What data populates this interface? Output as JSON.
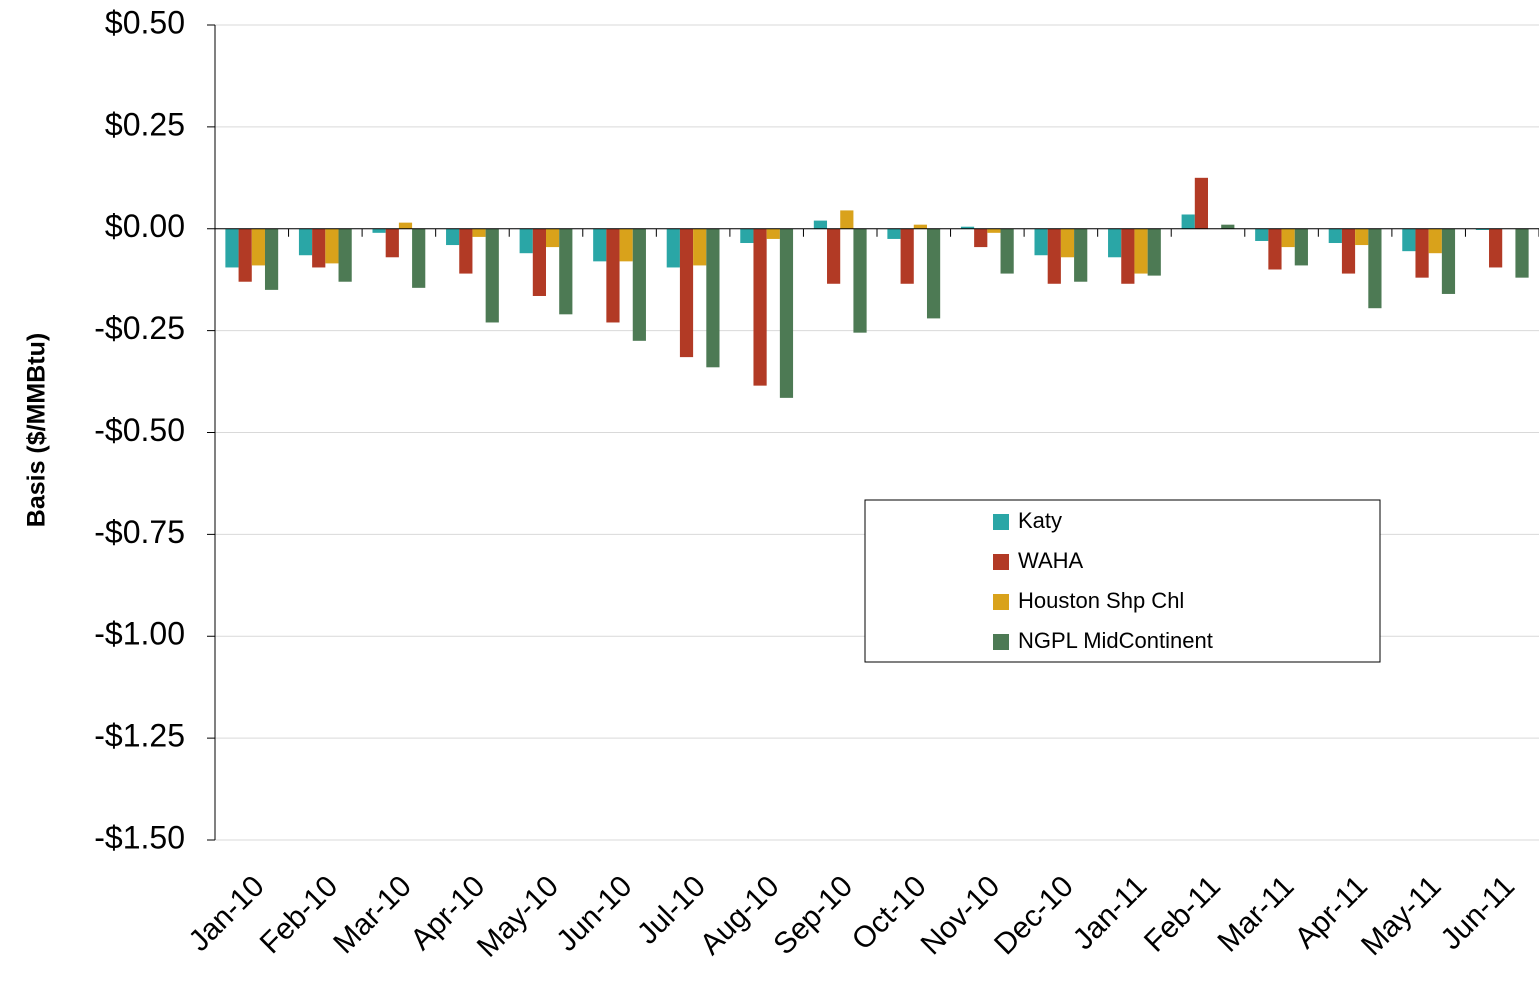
{
  "chart_data": {
    "type": "bar",
    "y_label": "Basis ($/MMBtu)",
    "categories": [
      "Jan-10",
      "Feb-10",
      "Mar-10",
      "Apr-10",
      "May-10",
      "Jun-10",
      "Jul-10",
      "Aug-10",
      "Sep-10",
      "Oct-10",
      "Nov-10",
      "Dec-10",
      "Jan-11",
      "Feb-11",
      "Mar-11",
      "Apr-11",
      "May-11",
      "Jun-11"
    ],
    "series": [
      {
        "name": "Katy",
        "color": "#2aa6a6",
        "values": [
          -0.095,
          -0.065,
          -0.01,
          -0.04,
          -0.06,
          -0.08,
          -0.095,
          -0.035,
          0.02,
          -0.025,
          0.005,
          -0.065,
          -0.07,
          0.035,
          -0.03,
          -0.035,
          -0.055,
          -0.003
        ]
      },
      {
        "name": "WAHA",
        "color": "#b23a25",
        "values": [
          -0.13,
          -0.095,
          -0.07,
          -0.11,
          -0.165,
          -0.23,
          -0.315,
          -0.385,
          -0.135,
          -0.135,
          -0.045,
          -0.135,
          -0.135,
          0.125,
          -0.1,
          -0.11,
          -0.12,
          -0.095
        ]
      },
      {
        "name": "Houston Shp Chl",
        "color": "#d9a21b",
        "values": [
          -0.09,
          -0.085,
          0.015,
          -0.02,
          -0.045,
          -0.08,
          -0.09,
          -0.025,
          0.045,
          0.01,
          -0.01,
          -0.07,
          -0.11,
          null,
          -0.045,
          -0.04,
          -0.06,
          null
        ]
      },
      {
        "name": "NGPL MidContinent",
        "color": "#4d7a54",
        "values": [
          -0.15,
          -0.13,
          -0.145,
          -0.23,
          -0.21,
          -0.275,
          -0.34,
          -0.415,
          -0.255,
          -0.22,
          -0.11,
          -0.13,
          -0.115,
          0.01,
          -0.09,
          -0.195,
          -0.16,
          -0.12
        ]
      }
    ],
    "ylim": [
      -1.5,
      0.5
    ],
    "yticks": [
      {
        "value": 0.5,
        "label": "$0.50"
      },
      {
        "value": 0.25,
        "label": "$0.25"
      },
      {
        "value": 0,
        "label": "$0.00"
      },
      {
        "value": -0.25,
        "label": "-$0.25"
      },
      {
        "value": -0.5,
        "label": "-$0.50"
      },
      {
        "value": -0.75,
        "label": "-$0.75"
      },
      {
        "value": -1,
        "label": "-$1.00"
      },
      {
        "value": -1.25,
        "label": "-$1.25"
      },
      {
        "value": -1.5,
        "label": "-$1.50"
      }
    ],
    "grid": true
  }
}
